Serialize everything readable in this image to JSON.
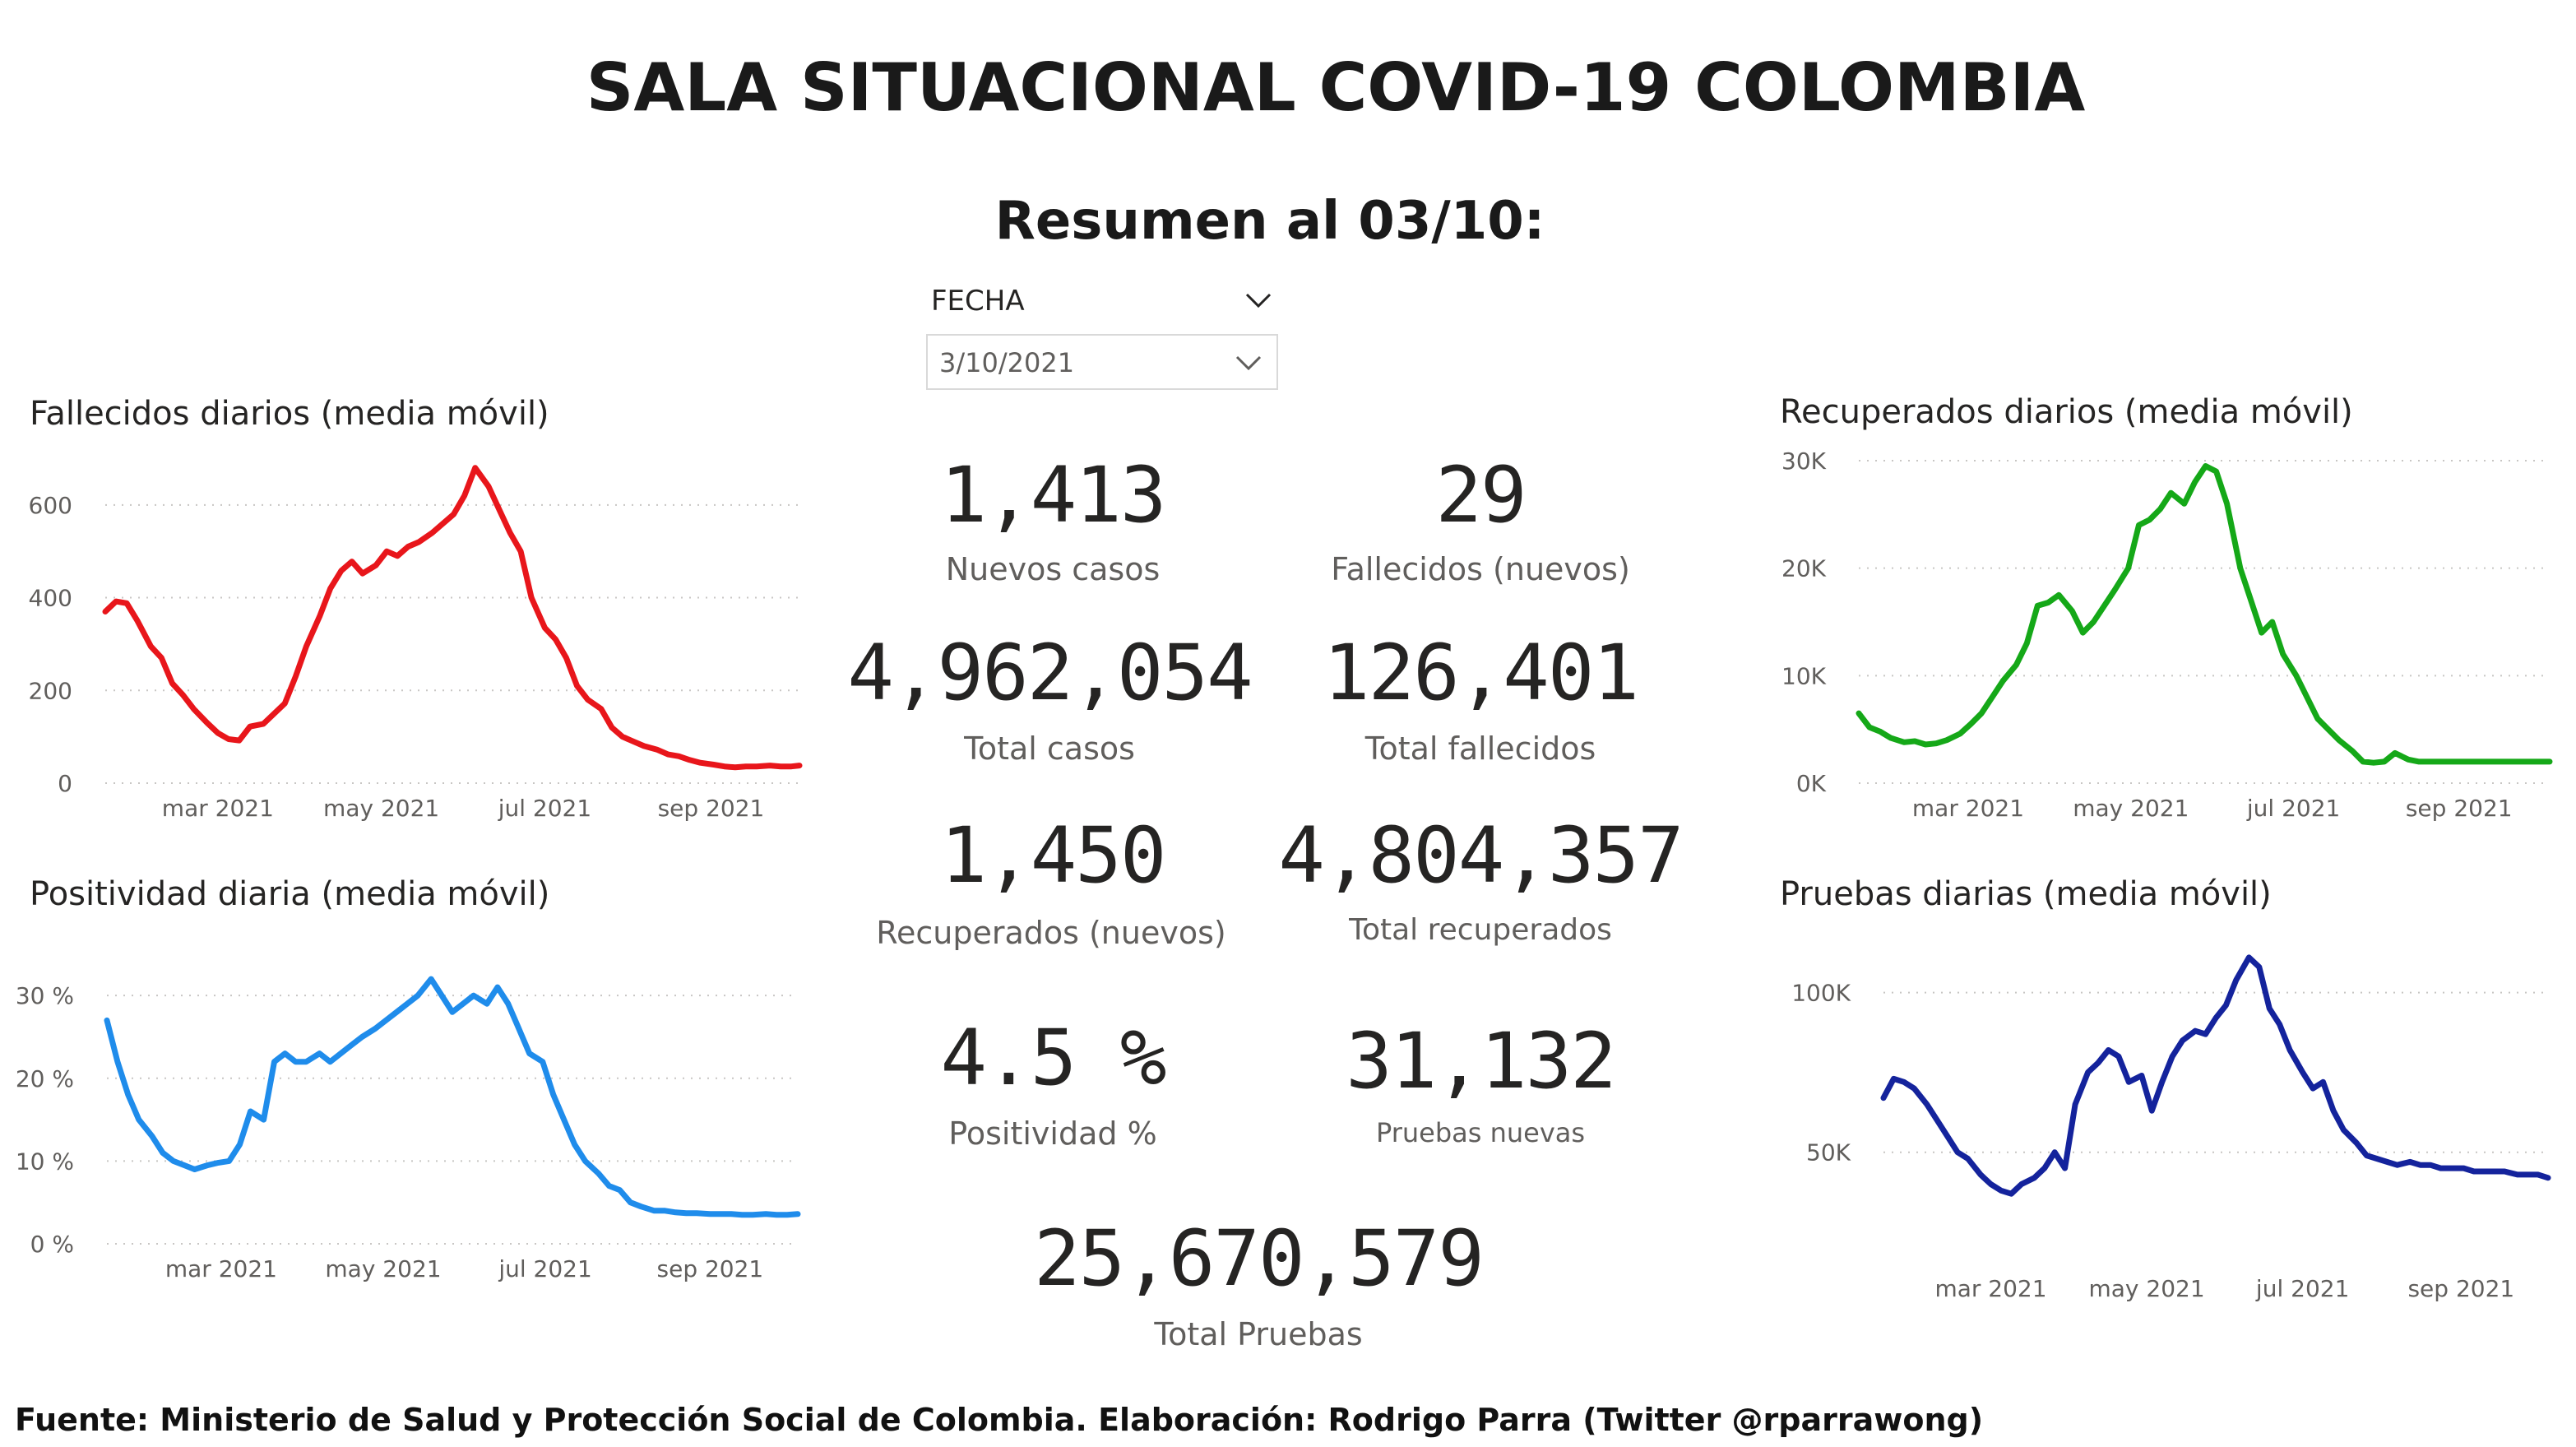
{
  "title": "SALA SITUACIONAL COVID-19 COLOMBIA",
  "subtitle": "Resumen al 03/10:",
  "slicer": {
    "label": "FECHA",
    "value": "3/10/2021"
  },
  "kpis": {
    "nuevos_casos": {
      "value": "1,413",
      "label": "Nuevos casos"
    },
    "fallecidos_nuevos": {
      "value": "29",
      "label": "Fallecidos (nuevos)"
    },
    "total_casos": {
      "value": "4,962,054",
      "label": "Total casos"
    },
    "total_fallecidos": {
      "value": "126,401",
      "label": "Total fallecidos"
    },
    "recuperados_nuevos": {
      "value": "1,450",
      "label": "Recuperados (nuevos)"
    },
    "total_recuperados": {
      "value": "4,804,357",
      "label": "Total recuperados"
    },
    "positividad": {
      "value": "4.5 %",
      "label": "Positividad %"
    },
    "pruebas_nuevas": {
      "value": "31,132",
      "label": "Pruebas nuevas"
    },
    "total_pruebas": {
      "value": "25,670,579",
      "label": "Total Pruebas"
    }
  },
  "footer": "Fuente: Ministerio de Salud y Protección Social de Colombia. Elaboración: Rodrigo Parra (Twitter @rparrawong)",
  "colors": {
    "fallecidos": "#e8161b",
    "positividad": "#1f8ceb",
    "recuperados": "#15a818",
    "pruebas": "#14239c",
    "grid": "#c8c6c4",
    "axis_text": "#605e5c"
  },
  "chart_data": [
    {
      "id": "fallecidos",
      "type": "line",
      "title": "Fallecidos diarios (media móvil)",
      "x_ticks": [
        "mar 2021",
        "may 2021",
        "jul 2021",
        "sep 2021"
      ],
      "x_tick_days": [
        59,
        120,
        181,
        243
      ],
      "xlim": [
        17,
        276
      ],
      "y_ticks": [
        "0",
        "200",
        "400",
        "600"
      ],
      "y_tick_values": [
        0,
        200,
        400,
        600
      ],
      "ylim": [
        0,
        660
      ],
      "x": [
        17,
        21,
        25,
        29,
        34,
        38,
        42,
        46,
        50,
        55,
        59,
        63,
        67,
        71,
        76,
        80,
        84,
        88,
        92,
        97,
        101,
        105,
        109,
        113,
        118,
        122,
        126,
        130,
        134,
        139,
        143,
        147,
        151,
        155,
        160,
        164,
        168,
        172,
        176,
        181,
        185,
        189,
        193,
        197,
        202,
        206,
        210,
        214,
        218,
        223,
        227,
        231,
        235,
        239,
        244,
        248,
        252,
        256,
        260,
        265,
        269,
        273,
        276
      ],
      "values": [
        370,
        392,
        388,
        350,
        295,
        270,
        215,
        190,
        160,
        130,
        108,
        95,
        92,
        122,
        128,
        150,
        172,
        230,
        295,
        360,
        420,
        458,
        478,
        452,
        470,
        500,
        490,
        510,
        520,
        540,
        560,
        580,
        620,
        680,
        640,
        590,
        540,
        500,
        400,
        335,
        310,
        270,
        210,
        180,
        160,
        120,
        100,
        90,
        80,
        72,
        62,
        58,
        50,
        44,
        40,
        36,
        34,
        36,
        36,
        38,
        36,
        36,
        38
      ]
    },
    {
      "id": "positividad",
      "type": "line",
      "title": "Positividad diaria (media móvil)",
      "x_ticks": [
        "mar 2021",
        "may 2021",
        "jul 2021",
        "sep 2021"
      ],
      "x_tick_days": [
        59,
        120,
        181,
        243
      ],
      "xlim": [
        16,
        276
      ],
      "y_ticks": [
        "0 %",
        "10 %",
        "20 %",
        "30 %"
      ],
      "y_tick_values": [
        0,
        10,
        20,
        30
      ],
      "ylim": [
        0,
        33
      ],
      "x": [
        16,
        20,
        24,
        28,
        33,
        37,
        41,
        45,
        49,
        54,
        58,
        62,
        66,
        70,
        75,
        79,
        83,
        87,
        91,
        96,
        100,
        104,
        108,
        112,
        117,
        121,
        125,
        129,
        133,
        138,
        142,
        146,
        150,
        154,
        159,
        163,
        167,
        171,
        175,
        180,
        184,
        188,
        192,
        196,
        201,
        205,
        209,
        213,
        217,
        222,
        226,
        230,
        234,
        238,
        243,
        247,
        251,
        255,
        259,
        264,
        268,
        272,
        276
      ],
      "values": [
        27,
        22,
        18,
        15,
        13,
        11,
        10,
        9.5,
        9,
        9.5,
        9.8,
        10,
        12,
        16,
        15,
        22,
        23,
        22,
        22,
        23,
        22,
        23,
        24,
        25,
        26,
        27,
        28,
        29,
        30,
        32,
        30,
        28,
        29,
        30,
        29,
        31,
        29,
        26,
        23,
        22,
        18,
        15,
        12,
        10,
        8.5,
        7,
        6.5,
        5,
        4.5,
        4,
        4,
        3.8,
        3.7,
        3.7,
        3.6,
        3.6,
        3.6,
        3.5,
        3.5,
        3.6,
        3.5,
        3.5,
        3.6
      ]
    },
    {
      "id": "recuperados",
      "type": "line",
      "title": "Recuperados diarios (media móvil)",
      "x_ticks": [
        "mar 2021",
        "may 2021",
        "jul 2021",
        "sep 2021"
      ],
      "x_tick_days": [
        59,
        120,
        181,
        243
      ],
      "xlim": [
        18,
        277
      ],
      "y_ticks": [
        "0K",
        "10K",
        "20K",
        "30K"
      ],
      "y_tick_values": [
        0,
        10000,
        20000,
        30000
      ],
      "ylim": [
        0,
        30000
      ],
      "x": [
        18,
        22,
        26,
        30,
        35,
        39,
        43,
        47,
        51,
        56,
        60,
        64,
        68,
        72,
        77,
        81,
        85,
        89,
        93,
        98,
        102,
        106,
        110,
        114,
        119,
        123,
        127,
        131,
        135,
        140,
        144,
        148,
        152,
        156,
        161,
        165,
        169,
        173,
        177,
        182,
        186,
        190,
        194,
        198,
        203,
        207,
        211,
        215,
        219,
        224,
        228,
        232,
        236,
        240,
        245,
        249,
        253,
        257,
        261,
        266,
        270,
        274,
        277
      ],
      "values": [
        6500,
        5200,
        4800,
        4200,
        3800,
        3900,
        3600,
        3700,
        4000,
        4600,
        5500,
        6500,
        8000,
        9500,
        11000,
        13000,
        16500,
        16800,
        17500,
        16000,
        14000,
        15000,
        16500,
        18000,
        20000,
        24000,
        24500,
        25500,
        27000,
        26000,
        28000,
        29500,
        29000,
        26000,
        20000,
        17000,
        14000,
        15000,
        12000,
        10000,
        8000,
        6000,
        5000,
        4000,
        3000,
        2000,
        1900,
        2000,
        2800,
        2200,
        2000,
        2000,
        2000,
        2000,
        2000,
        2000,
        2000,
        2000,
        2000,
        2000,
        2000,
        2000,
        2000
      ]
    },
    {
      "id": "pruebas",
      "type": "line",
      "title": "Pruebas diarias (media móvil)",
      "x_ticks": [
        "mar 2021",
        "may 2021",
        "jul 2021",
        "sep 2021"
      ],
      "x_tick_days": [
        59,
        120,
        181,
        243
      ],
      "xlim": [
        17,
        277
      ],
      "y_ticks": [
        "50K",
        "100K"
      ],
      "y_tick_values": [
        50000,
        100000
      ],
      "ylim": [
        27000,
        112000
      ],
      "x": [
        17,
        21,
        25,
        29,
        34,
        38,
        42,
        46,
        50,
        55,
        59,
        63,
        67,
        71,
        76,
        80,
        84,
        88,
        92,
        97,
        101,
        105,
        109,
        113,
        118,
        122,
        126,
        130,
        134,
        139,
        143,
        147,
        151,
        155,
        160,
        164,
        168,
        172,
        176,
        181,
        185,
        189,
        193,
        197,
        202,
        206,
        210,
        214,
        218,
        223,
        227,
        231,
        235,
        239,
        244,
        248,
        252,
        256,
        260,
        265,
        269,
        273,
        277
      ],
      "values": [
        67000,
        73000,
        72000,
        70000,
        65000,
        60000,
        55000,
        50000,
        48000,
        43000,
        40000,
        38000,
        37000,
        40000,
        42000,
        45000,
        50000,
        45000,
        65000,
        75000,
        78000,
        82000,
        80000,
        72000,
        74000,
        63000,
        72000,
        80000,
        85000,
        88000,
        87000,
        92000,
        96000,
        104000,
        111000,
        108000,
        95000,
        90000,
        82000,
        75000,
        70000,
        72000,
        63000,
        57000,
        53000,
        49000,
        48000,
        47000,
        46000,
        47000,
        46000,
        46000,
        45000,
        45000,
        45000,
        44000,
        44000,
        44000,
        44000,
        43000,
        43000,
        43000,
        42000
      ]
    }
  ]
}
